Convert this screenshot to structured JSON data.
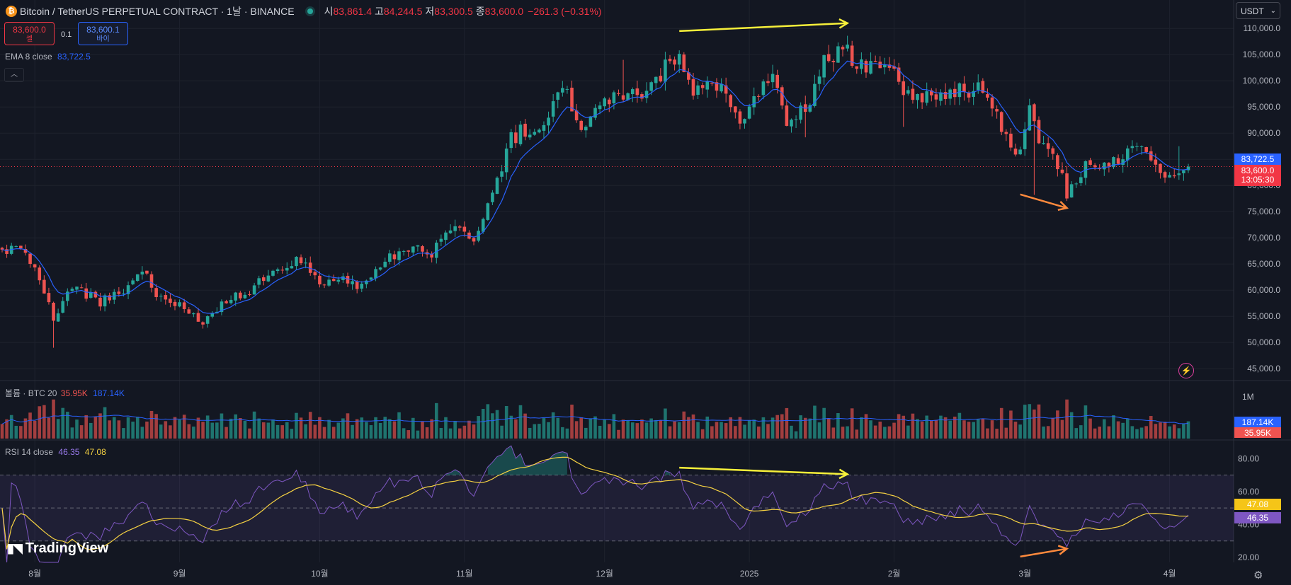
{
  "header": {
    "symbol": "Bitcoin / TetherUS PERPETUAL CONTRACT · 1날 · BINANCE",
    "open_label": "시",
    "open": "83,861.4",
    "high_label": "고",
    "high": "84,244.5",
    "low_label": "저",
    "low": "83,300.5",
    "close_label": "종",
    "close": "83,600.0",
    "change": "−261.3 (−0.31%)",
    "sell_price": "83,600.0",
    "sell_label": "셀",
    "buy_price": "83,600.1",
    "buy_label": "바이",
    "spread": "0.1",
    "currency": "USDT"
  },
  "indicators": {
    "ema_label": "EMA 8 close",
    "ema_value": "83,722.5",
    "volume_label": "볼륨 · BTC 20",
    "volume_value": "35.95K",
    "volume_ma": "187.14K",
    "rsi_label": "RSI 14 close",
    "rsi_value": "46.35",
    "rsi_ma": "47.08"
  },
  "brand": "TradingView",
  "icons": {
    "coin": "btc-icon",
    "live": "live-dot-icon",
    "collapse": "chevron-up-icon",
    "alert": "lightning-icon",
    "settings": "gear-icon"
  },
  "colors": {
    "up": "#26a69a",
    "down": "#ef5350",
    "ema": "#2962ff",
    "rsi": "#7e57c2",
    "rsi_ma": "#f5d142",
    "background": "#131722"
  },
  "chart_data": [
    {
      "type": "candlestick",
      "title": "Bitcoin / TetherUS PERPETUAL CONTRACT · 1날 · BINANCE",
      "x_ticks": [
        "8월",
        "9월",
        "10월",
        "11월",
        "12월",
        "2025",
        "2월",
        "3월",
        "4월"
      ],
      "y_ticks": [
        45000,
        50000,
        55000,
        60000,
        65000,
        70000,
        75000,
        80000,
        85000,
        90000,
        95000,
        100000,
        105000,
        110000
      ],
      "y_tick_labels": [
        "45,000.0",
        "50,000.0",
        "55,000.0",
        "60,000.0",
        "65,000.0",
        "70,000.0",
        "75,000.0",
        "80,000.0",
        "85,000.0",
        "90,000.0",
        "95,000.0",
        "100,000.0",
        "105,000.0",
        "110,000.0"
      ],
      "ylim": [
        43000,
        113000
      ],
      "x_start": "2024-07-25",
      "x_end": "2025-04-05",
      "waypoints": [
        [
          "2024-07-25",
          67500
        ],
        [
          "2024-07-29",
          68500
        ],
        [
          "2024-08-01",
          64500
        ],
        [
          "2024-08-04",
          58000
        ],
        [
          "2024-08-05",
          54000
        ],
        [
          "2024-08-07",
          57000
        ],
        [
          "2024-08-09",
          60900
        ],
        [
          "2024-08-15",
          57800
        ],
        [
          "2024-08-20",
          59500
        ],
        [
          "2024-08-24",
          64200
        ],
        [
          "2024-08-27",
          59000
        ],
        [
          "2024-09-01",
          57300
        ],
        [
          "2024-09-06",
          54000
        ],
        [
          "2024-09-10",
          57600
        ],
        [
          "2024-09-15",
          59200
        ],
        [
          "2024-09-20",
          63000
        ],
        [
          "2024-09-27",
          65800
        ],
        [
          "2024-10-01",
          60800
        ],
        [
          "2024-10-05",
          62000
        ],
        [
          "2024-10-10",
          60300
        ],
        [
          "2024-10-15",
          66000
        ],
        [
          "2024-10-21",
          69000
        ],
        [
          "2024-10-25",
          66600
        ],
        [
          "2024-10-29",
          72500
        ],
        [
          "2024-11-03",
          68700
        ],
        [
          "2024-11-06",
          75600
        ],
        [
          "2024-11-11",
          88700
        ],
        [
          "2024-11-13",
          90200
        ],
        [
          "2024-11-18",
          90400
        ],
        [
          "2024-11-22",
          98900
        ],
        [
          "2024-11-26",
          91900
        ],
        [
          "2024-12-01",
          96400
        ],
        [
          "2024-12-05",
          97800
        ],
        [
          "2024-12-09",
          97400
        ],
        [
          "2024-12-13",
          101400
        ],
        [
          "2024-12-17",
          106000
        ],
        [
          "2024-12-20",
          97800
        ],
        [
          "2024-12-25",
          99300
        ],
        [
          "2024-12-30",
          92600
        ],
        [
          "2025-01-03",
          98100
        ],
        [
          "2025-01-06",
          102000
        ],
        [
          "2025-01-09",
          92500
        ],
        [
          "2025-01-13",
          94500
        ],
        [
          "2025-01-17",
          104200
        ],
        [
          "2025-01-21",
          106000
        ],
        [
          "2025-01-26",
          102600
        ],
        [
          "2025-01-31",
          102400
        ],
        [
          "2025-02-03",
          97500
        ],
        [
          "2025-02-10",
          97500
        ],
        [
          "2025-02-20",
          98300
        ],
        [
          "2025-02-24",
          91500
        ],
        [
          "2025-02-27",
          84700
        ],
        [
          "2025-03-02",
          94300
        ],
        [
          "2025-03-04",
          87200
        ],
        [
          "2025-03-07",
          86800
        ],
        [
          "2025-03-10",
          78600
        ],
        [
          "2025-03-14",
          84000
        ],
        [
          "2025-03-20",
          84200
        ],
        [
          "2025-03-24",
          88000
        ],
        [
          "2025-03-28",
          84400
        ],
        [
          "2025-03-31",
          82500
        ],
        [
          "2025-04-02",
          82500
        ],
        [
          "2025-04-04",
          83600
        ]
      ],
      "ema_period": 8,
      "last_price": "83,600.0",
      "countdown": "13:05:30",
      "ema_last": "83,722.5",
      "annotations": [
        {
          "type": "arrow",
          "color": "#f7f03a",
          "from": [
            "2024-12-17",
            109500
          ],
          "to": [
            "2025-01-22",
            111000
          ]
        },
        {
          "type": "arrow",
          "color": "#ff8a3d",
          "from": [
            "2025-02-28",
            78300
          ],
          "to": [
            "2025-03-10",
            75700
          ]
        }
      ]
    },
    {
      "type": "bar",
      "title": "볼륨 · BTC 20",
      "y_tick_labels": [
        "1M"
      ],
      "last_value": "35.95K",
      "ma_value": "187.14K"
    },
    {
      "type": "line",
      "title": "RSI 14 close",
      "ylim": [
        17,
        90
      ],
      "y_ticks": [
        20,
        40,
        60,
        80
      ],
      "y_tick_labels": [
        "20.00",
        "40.00",
        "60.00",
        "80.00"
      ],
      "bands": [
        30,
        50,
        70
      ],
      "rsi_period": 14,
      "last_rsi": "46.35",
      "last_ma": "47.08",
      "annotations": [
        {
          "type": "arrow",
          "color": "#f7f03a",
          "from": [
            "2024-12-17",
            74.5
          ],
          "to": [
            "2025-01-22",
            70.5
          ]
        },
        {
          "type": "arrow",
          "color": "#ff8a3d",
          "from": [
            "2025-02-28",
            20.5
          ],
          "to": [
            "2025-03-10",
            25.3
          ]
        }
      ]
    }
  ]
}
